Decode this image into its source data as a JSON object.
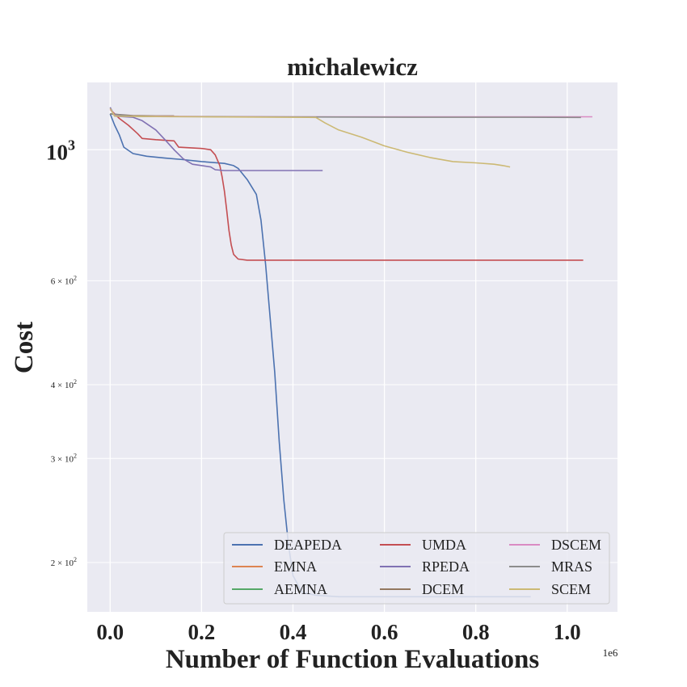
{
  "chart_data": {
    "type": "line",
    "title": "michalewicz",
    "xlabel": "Number of Function Evaluations",
    "ylabel": "Cost",
    "x_multiplier_label": "1e6",
    "yscale": "log",
    "xlim": [
      -0.05,
      1.11
    ],
    "ylim": [
      165,
      1300
    ],
    "grid": true,
    "legend_position": "lower-right",
    "legend_columns": 3,
    "background_color": "#eaeaf2",
    "x_ticks": [
      {
        "value": 0.0,
        "label": "0.0"
      },
      {
        "value": 0.2,
        "label": "0.2"
      },
      {
        "value": 0.4,
        "label": "0.4"
      },
      {
        "value": 0.6,
        "label": "0.6"
      },
      {
        "value": 0.8,
        "label": "0.8"
      },
      {
        "value": 1.0,
        "label": "1.0"
      }
    ],
    "y_ticks": [
      {
        "value": 1000,
        "base": "10",
        "exp": "3",
        "major": true
      },
      {
        "value": 600,
        "base": "6 × 10",
        "exp": "2",
        "major": false
      },
      {
        "value": 400,
        "base": "4 × 10",
        "exp": "2",
        "major": false
      },
      {
        "value": 300,
        "base": "3 × 10",
        "exp": "2",
        "major": false
      },
      {
        "value": 200,
        "base": "2 × 10",
        "exp": "2",
        "major": false
      }
    ],
    "series": [
      {
        "name": "DEAPEDA",
        "color": "#4c72b0",
        "points": [
          [
            0,
            1150
          ],
          [
            0.01,
            1100
          ],
          [
            0.02,
            1060
          ],
          [
            0.03,
            1010
          ],
          [
            0.05,
            985
          ],
          [
            0.08,
            975
          ],
          [
            0.12,
            968
          ],
          [
            0.16,
            962
          ],
          [
            0.2,
            955
          ],
          [
            0.25,
            948
          ],
          [
            0.27,
            940
          ],
          [
            0.28,
            930
          ],
          [
            0.3,
            890
          ],
          [
            0.32,
            840
          ],
          [
            0.33,
            760
          ],
          [
            0.34,
            640
          ],
          [
            0.35,
            520
          ],
          [
            0.36,
            420
          ],
          [
            0.37,
            320
          ],
          [
            0.38,
            255
          ],
          [
            0.39,
            215
          ],
          [
            0.4,
            190
          ],
          [
            0.42,
            178
          ],
          [
            0.45,
            176
          ],
          [
            0.5,
            175
          ],
          [
            0.6,
            175
          ],
          [
            0.7,
            175
          ],
          [
            0.8,
            175
          ],
          [
            0.9,
            175
          ],
          [
            0.92,
            175
          ]
        ]
      },
      {
        "name": "EMNA",
        "color": "#dd8452",
        "points": [
          [
            0,
            1150
          ],
          [
            0.02,
            1145
          ],
          [
            0.05,
            1140
          ],
          [
            0.1,
            1138
          ]
        ]
      },
      {
        "name": "AEMNA",
        "color": "#55a868",
        "points": [
          [
            0,
            1150
          ],
          [
            0.05,
            1140
          ],
          [
            0.1,
            1138
          ],
          [
            0.15,
            1138
          ]
        ]
      },
      {
        "name": "UMDA",
        "color": "#c44e52",
        "points": [
          [
            0,
            1170
          ],
          [
            0.02,
            1130
          ],
          [
            0.04,
            1100
          ],
          [
            0.06,
            1065
          ],
          [
            0.07,
            1045
          ],
          [
            0.1,
            1040
          ],
          [
            0.14,
            1035
          ],
          [
            0.15,
            1010
          ],
          [
            0.2,
            1005
          ],
          [
            0.22,
            1000
          ],
          [
            0.23,
            980
          ],
          [
            0.24,
            940
          ],
          [
            0.245,
            900
          ],
          [
            0.25,
            850
          ],
          [
            0.255,
            790
          ],
          [
            0.26,
            730
          ],
          [
            0.265,
            690
          ],
          [
            0.27,
            665
          ],
          [
            0.28,
            653
          ],
          [
            0.3,
            650
          ],
          [
            0.4,
            650
          ],
          [
            0.6,
            650
          ],
          [
            0.8,
            650
          ],
          [
            1.0,
            650
          ],
          [
            1.035,
            650
          ]
        ]
      },
      {
        "name": "RPEDA",
        "color": "#8172b3",
        "points": [
          [
            0,
            1180
          ],
          [
            0.01,
            1140
          ],
          [
            0.05,
            1135
          ],
          [
            0.07,
            1120
          ],
          [
            0.1,
            1080
          ],
          [
            0.12,
            1040
          ],
          [
            0.14,
            1000
          ],
          [
            0.16,
            965
          ],
          [
            0.18,
            945
          ],
          [
            0.22,
            935
          ],
          [
            0.23,
            925
          ],
          [
            0.25,
            922
          ],
          [
            0.3,
            922
          ],
          [
            0.4,
            922
          ],
          [
            0.465,
            922
          ]
        ]
      },
      {
        "name": "DCEM",
        "color": "#937860",
        "points": [
          [
            0,
            1150
          ],
          [
            0.05,
            1142
          ],
          [
            0.1,
            1141
          ],
          [
            0.14,
            1141
          ]
        ]
      },
      {
        "name": "DSCEM",
        "color": "#da8bc3",
        "points": [
          [
            0,
            1170
          ],
          [
            0.01,
            1145
          ],
          [
            0.05,
            1140
          ],
          [
            0.2,
            1138
          ],
          [
            0.4,
            1137
          ],
          [
            0.6,
            1137
          ],
          [
            0.8,
            1137
          ],
          [
            1.0,
            1137
          ],
          [
            1.055,
            1137
          ]
        ]
      },
      {
        "name": "MRAS",
        "color": "#8c8c8c",
        "points": [
          [
            0,
            1150
          ],
          [
            0.05,
            1140
          ],
          [
            0.1,
            1138
          ],
          [
            0.3,
            1137
          ],
          [
            0.5,
            1136
          ],
          [
            0.7,
            1135
          ],
          [
            0.9,
            1135
          ],
          [
            1.03,
            1134
          ]
        ]
      },
      {
        "name": "SCEM",
        "color": "#ccb974",
        "points": [
          [
            0,
            1175
          ],
          [
            0.01,
            1140
          ],
          [
            0.1,
            1138
          ],
          [
            0.2,
            1137
          ],
          [
            0.3,
            1136
          ],
          [
            0.45,
            1134
          ],
          [
            0.47,
            1110
          ],
          [
            0.5,
            1080
          ],
          [
            0.55,
            1050
          ],
          [
            0.6,
            1015
          ],
          [
            0.65,
            990
          ],
          [
            0.7,
            970
          ],
          [
            0.75,
            955
          ],
          [
            0.8,
            950
          ],
          [
            0.84,
            945
          ],
          [
            0.86,
            940
          ],
          [
            0.875,
            935
          ]
        ]
      }
    ]
  }
}
